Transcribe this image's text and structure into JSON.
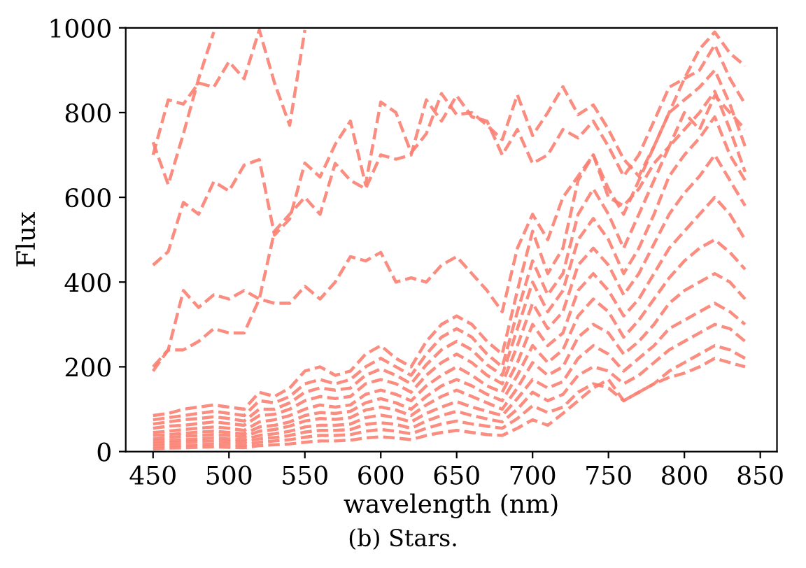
{
  "chart_data": {
    "type": "line",
    "xlabel": "wavelength (nm)",
    "ylabel": "Flux",
    "annotations": [
      "(b) Stars."
    ],
    "x": [
      450,
      460,
      470,
      480,
      490,
      500,
      510,
      520,
      530,
      540,
      550,
      560,
      570,
      580,
      590,
      600,
      610,
      620,
      630,
      640,
      650,
      660,
      670,
      680,
      690,
      700,
      710,
      720,
      730,
      740,
      750,
      760,
      770,
      780,
      790,
      800,
      810,
      820,
      830,
      840
    ],
    "xlim": [
      432,
      861
    ],
    "ylim": [
      0,
      1000
    ],
    "xticks": [
      450,
      500,
      550,
      600,
      650,
      700,
      750,
      800,
      850
    ],
    "yticks": [
      0,
      200,
      400,
      600,
      800,
      1000
    ],
    "line_style": "dashed",
    "marker": "none",
    "grid": false,
    "series": [
      {
        "color": "#fa8072",
        "x": [
          450,
          460,
          470,
          480,
          490
        ],
        "values": [
          730,
          630,
          750,
          880,
          990
        ]
      },
      {
        "color": "#fa8072",
        "x": [
          450,
          460,
          470,
          480,
          490,
          500,
          510,
          520,
          530,
          540,
          550
        ],
        "values": [
          700,
          830,
          820,
          870,
          860,
          920,
          880,
          995,
          870,
          770,
          995
        ]
      },
      {
        "color": "#fa8072",
        "values": [
          440,
          472,
          588,
          560,
          637,
          615,
          676,
          689,
          511,
          549,
          681,
          648,
          725,
          780,
          630,
          825,
          800,
          705,
          750,
          845,
          795,
          800,
          770,
          736,
          842,
          746,
          800,
          861,
          795,
          818,
          760,
          690,
          650,
          720,
          800,
          880,
          950,
          990,
          940,
          910
        ]
      },
      {
        "color": "#fa8072",
        "values": [
          200,
          240,
          380,
          340,
          370,
          360,
          380,
          360,
          350,
          350,
          390,
          360,
          400,
          460,
          450,
          470,
          400,
          410,
          400,
          440,
          460,
          420,
          380,
          330,
          480,
          560,
          500,
          600,
          650,
          700,
          600,
          580,
          620,
          680,
          720,
          800,
          760,
          840,
          800,
          760
        ]
      },
      {
        "color": "#fa8072",
        "values": [
          190,
          240,
          240,
          260,
          290,
          280,
          280,
          360,
          520,
          560,
          600,
          560,
          680,
          640,
          620,
          700,
          690,
          700,
          830,
          780,
          840,
          790,
          780,
          700,
          760,
          680,
          700,
          760,
          740,
          780,
          720,
          650,
          700,
          780,
          860,
          880,
          900,
          960,
          880,
          820
        ]
      },
      {
        "color": "#fa8072",
        "values": [
          85,
          90,
          100,
          105,
          110,
          105,
          100,
          140,
          130,
          150,
          190,
          200,
          180,
          190,
          230,
          250,
          220,
          200,
          260,
          300,
          320,
          300,
          260,
          230,
          380,
          520,
          420,
          480,
          640,
          700,
          620,
          560,
          640,
          720,
          800,
          830,
          860,
          900,
          820,
          720
        ]
      },
      {
        "color": "#fa8072",
        "values": [
          75,
          80,
          85,
          90,
          95,
          90,
          85,
          120,
          115,
          130,
          160,
          170,
          160,
          170,
          200,
          220,
          200,
          180,
          230,
          270,
          290,
          270,
          230,
          200,
          330,
          450,
          370,
          420,
          560,
          620,
          560,
          480,
          560,
          640,
          720,
          760,
          800,
          850,
          760,
          660
        ]
      },
      {
        "color": "#fa8072",
        "values": [
          65,
          70,
          75,
          78,
          82,
          78,
          72,
          100,
          100,
          115,
          140,
          150,
          145,
          150,
          180,
          195,
          180,
          160,
          205,
          240,
          260,
          240,
          205,
          180,
          290,
          400,
          330,
          380,
          500,
          550,
          500,
          420,
          480,
          560,
          650,
          700,
          740,
          790,
          700,
          640
        ]
      },
      {
        "color": "#fa8072",
        "values": [
          55,
          60,
          62,
          66,
          70,
          66,
          62,
          85,
          88,
          100,
          120,
          130,
          125,
          130,
          160,
          170,
          160,
          140,
          180,
          210,
          230,
          210,
          180,
          160,
          250,
          350,
          290,
          330,
          440,
          480,
          440,
          370,
          420,
          490,
          560,
          610,
          650,
          700,
          640,
          580
        ]
      },
      {
        "color": "#fa8072",
        "values": [
          45,
          48,
          52,
          55,
          58,
          55,
          50,
          70,
          75,
          85,
          100,
          110,
          105,
          110,
          135,
          145,
          135,
          120,
          155,
          180,
          200,
          180,
          155,
          140,
          210,
          300,
          250,
          280,
          380,
          420,
          380,
          320,
          360,
          420,
          480,
          520,
          560,
          600,
          560,
          500
        ]
      },
      {
        "color": "#fa8072",
        "values": [
          38,
          40,
          43,
          46,
          48,
          45,
          42,
          58,
          62,
          70,
          85,
          92,
          90,
          95,
          115,
          125,
          115,
          100,
          130,
          155,
          170,
          155,
          135,
          120,
          180,
          250,
          210,
          240,
          320,
          360,
          330,
          270,
          310,
          360,
          410,
          450,
          480,
          500,
          470,
          430
        ]
      },
      {
        "color": "#fa8072",
        "values": [
          30,
          33,
          36,
          38,
          40,
          38,
          35,
          48,
          52,
          60,
          72,
          78,
          76,
          80,
          98,
          105,
          98,
          85,
          110,
          130,
          145,
          130,
          115,
          100,
          150,
          210,
          180,
          200,
          270,
          300,
          280,
          230,
          260,
          300,
          350,
          380,
          400,
          420,
          400,
          360
        ]
      },
      {
        "color": "#fa8072",
        "values": [
          24,
          26,
          28,
          30,
          32,
          30,
          28,
          38,
          42,
          48,
          58,
          62,
          62,
          65,
          80,
          86,
          80,
          70,
          90,
          105,
          118,
          105,
          95,
          85,
          125,
          170,
          150,
          165,
          220,
          250,
          230,
          190,
          220,
          250,
          290,
          310,
          330,
          350,
          330,
          300
        ]
      },
      {
        "color": "#fa8072",
        "values": [
          18,
          20,
          22,
          24,
          25,
          24,
          22,
          30,
          33,
          38,
          46,
          50,
          50,
          52,
          64,
          68,
          64,
          55,
          72,
          85,
          95,
          85,
          77,
          70,
          100,
          140,
          120,
          135,
          180,
          200,
          190,
          160,
          180,
          210,
          240,
          260,
          280,
          300,
          290,
          260
        ]
      },
      {
        "color": "#fa8072",
        "values": [
          12,
          14,
          15,
          16,
          18,
          17,
          15,
          22,
          25,
          28,
          34,
          38,
          38,
          40,
          48,
          52,
          48,
          42,
          55,
          65,
          72,
          65,
          60,
          55,
          78,
          108,
          92,
          105,
          140,
          160,
          150,
          120,
          140,
          160,
          190,
          210,
          230,
          250,
          240,
          220
        ]
      },
      {
        "color": "#fa8072",
        "values": [
          6,
          8,
          9,
          10,
          11,
          10,
          9,
          14,
          16,
          18,
          22,
          25,
          25,
          27,
          32,
          35,
          32,
          28,
          38,
          45,
          50,
          45,
          40,
          38,
          55,
          75,
          62,
          90,
          120,
          150,
          170,
          120,
          140,
          160,
          175,
          185,
          200,
          220,
          210,
          200
        ]
      }
    ]
  }
}
